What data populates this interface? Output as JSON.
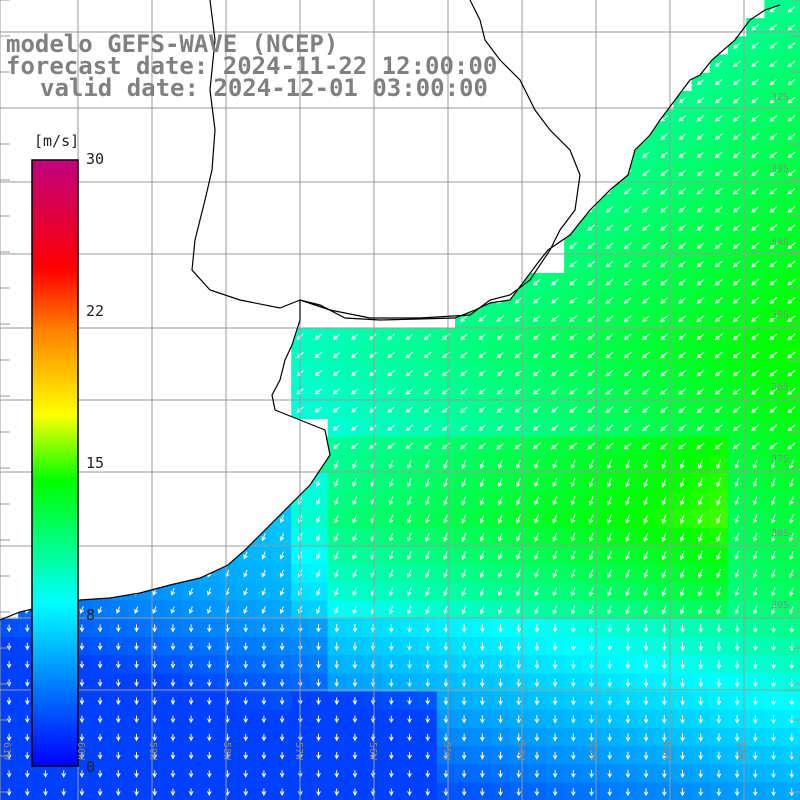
{
  "title": {
    "line1": "modelo GEFS-WAVE (NCEP)",
    "line2": "forecast date: 2024-11-22 12:00:00",
    "line3": "valid date: 2024-12-01 03:00:00"
  },
  "colorbar": {
    "unit": "[m/s]",
    "ticks": [
      "30",
      "22",
      "15",
      "8",
      "0"
    ]
  },
  "lat_labels": [
    "32S",
    "33S",
    "34S",
    "35S",
    "36S",
    "37S",
    "38S",
    "39S"
  ],
  "lon_labels": [
    "61W",
    "60W",
    "59W",
    "58W",
    "57W",
    "56W",
    "55W",
    "54W",
    "53W",
    "52W",
    "51W"
  ],
  "chart_data": {
    "type": "heatmap",
    "variable": "wind speed",
    "unit": "m/s",
    "value_range": [
      0,
      30
    ],
    "lon_range": [
      -61.5,
      -50.5
    ],
    "lat_range": [
      -31.0,
      -40.0
    ],
    "colorscale": [
      "#0000ff",
      "#00ffff",
      "#00ff00",
      "#ffff00",
      "#ff8000",
      "#ff0000",
      "#c0007f"
    ]
  }
}
